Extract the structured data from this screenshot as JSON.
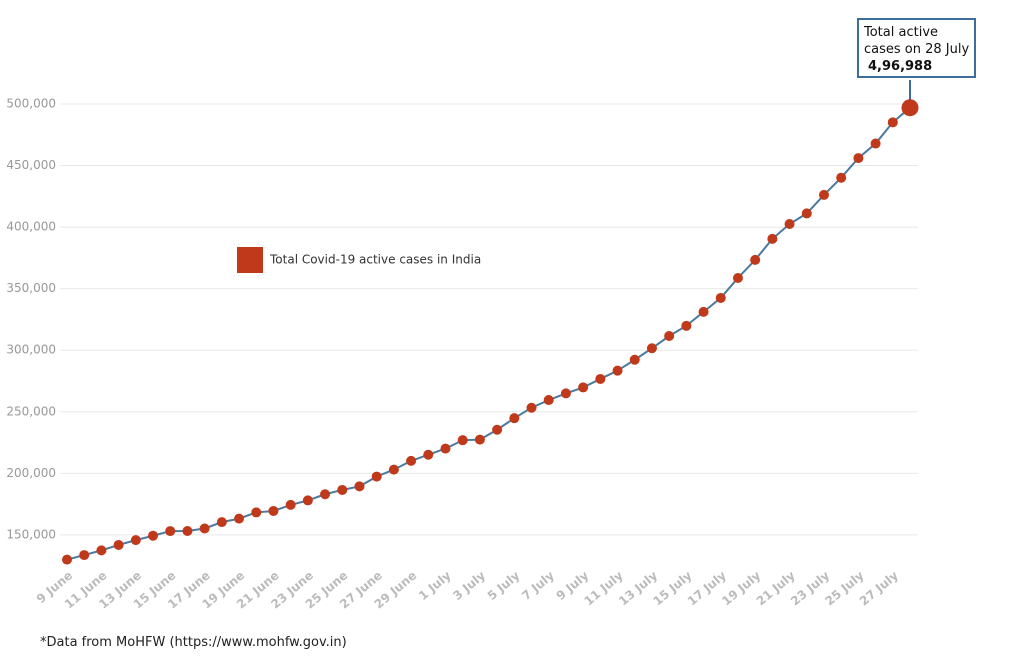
{
  "chart_data": {
    "type": "line",
    "annotation": "Total active cases on 28 July",
    "footnote": "*Data from MoHFW (https://www.mohfw.gov.in)",
    "categories": [
      "9 June",
      null,
      "11 June",
      null,
      "13 June",
      null,
      "15 June",
      null,
      "17 June",
      null,
      "19 June",
      null,
      "21 June",
      null,
      "23 June",
      null,
      "25 June",
      null,
      "27 June",
      null,
      "29 June",
      null,
      "1 July",
      null,
      "3 July",
      null,
      "5 July",
      null,
      "7 July",
      null,
      "9 July",
      null,
      "11 July",
      null,
      "13 July",
      null,
      "15 July",
      null,
      "17 July",
      null,
      "19 July",
      null,
      "21 July",
      null,
      "23 July",
      null,
      "25 July",
      null,
      "27 July",
      null
    ],
    "series": [
      {
        "name": "Total Covid-19 active cases in India",
        "color": "#c0391b",
        "line_color": "#4a7aa0",
        "values": [
          129917,
          133632,
          137448,
          141842,
          145779,
          149348,
          153106,
          153178,
          155227,
          160384,
          163248,
          168269,
          169451,
          174387,
          178014,
          183022,
          186514,
          189463,
          197387,
          203051,
          210120,
          215125,
          220114,
          226947,
          227439,
          235433,
          244814,
          253287,
          259557,
          264944,
          269789,
          276685,
          283407,
          292258,
          301609,
          311565,
          319840,
          331146,
          342473,
          358692,
          373379,
          390459,
          402529,
          411133,
          426167,
          440135,
          456071,
          467882,
          485114,
          496988
        ],
        "value_labels": [
          null,
          null,
          null,
          null,
          null,
          null,
          null,
          null,
          null,
          null,
          null,
          null,
          null,
          null,
          null,
          null,
          null,
          null,
          null,
          null,
          null,
          null,
          null,
          null,
          null,
          null,
          null,
          null,
          null,
          null,
          null,
          null,
          null,
          null,
          null,
          null,
          null,
          null,
          null,
          null,
          null,
          null,
          null,
          null,
          null,
          null,
          null,
          null,
          null,
          "4,96,988"
        ]
      }
    ],
    "ylim": [
      125000,
      500000
    ],
    "yticks": [
      {
        "value": 150000,
        "label": "150,000"
      },
      {
        "value": 200000,
        "label": "200,000"
      },
      {
        "value": 250000,
        "label": "250,000"
      },
      {
        "value": 300000,
        "label": "300,000"
      },
      {
        "value": 350000,
        "label": "350,000"
      },
      {
        "value": 400000,
        "label": "400,000"
      },
      {
        "value": 450000,
        "label": "450,000"
      },
      {
        "value": 500000,
        "label": "500,000"
      }
    ],
    "grid": true
  }
}
